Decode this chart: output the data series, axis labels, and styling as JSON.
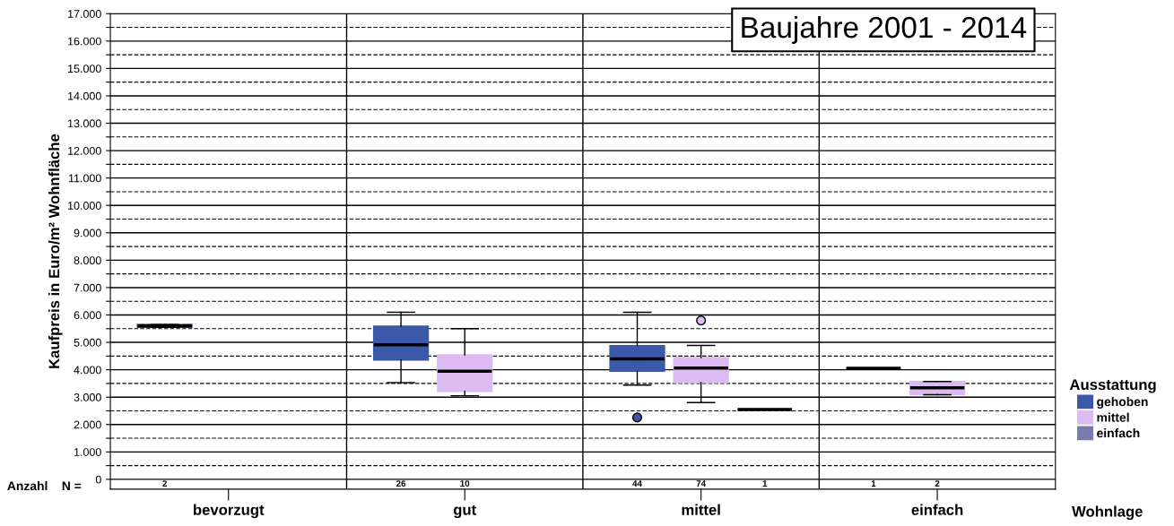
{
  "chart_data": {
    "type": "box",
    "title": "Baujahre 2001 - 2014",
    "xlabel": "Wohnlage",
    "ylabel": "Kaufpreis in Euro/m² Wohnfläche",
    "legend_title": "Ausstattung",
    "categories": [
      "bevorzugt",
      "gut",
      "mittel",
      "einfach"
    ],
    "series": [
      {
        "name": "gehoben",
        "color": "#3c58a8",
        "value_labels": [
          "2",
          "26",
          "44",
          "1"
        ],
        "boxes": [
          {
            "low": 5550,
            "q1": 5550,
            "median": 5600,
            "q3": 5650,
            "high": 5650
          },
          {
            "low": 3530,
            "q1": 4360,
            "median": 4910,
            "q3": 5590,
            "high": 6100
          },
          {
            "low": 3440,
            "q1": 3950,
            "median": 4400,
            "q3": 4880,
            "high": 6100,
            "outliers": [
              2260
            ]
          },
          {
            "low": 4050,
            "q1": 4050,
            "median": 4050,
            "q3": 4050,
            "high": 4050
          }
        ]
      },
      {
        "name": "mittel",
        "color": "#dcbcf0",
        "value_labels": [
          null,
          "10",
          "74",
          "2"
        ],
        "boxes": [
          null,
          {
            "low": 3050,
            "q1": 3210,
            "median": 3950,
            "q3": 4540,
            "high": 5500
          },
          {
            "low": 2800,
            "q1": 3530,
            "median": 4060,
            "q3": 4440,
            "high": 4890,
            "outliers": [
              5800
            ]
          },
          {
            "low": 3090,
            "q1": 3090,
            "median": 3340,
            "q3": 3570,
            "high": 3570
          }
        ]
      },
      {
        "name": "einfach",
        "color": "#7b7bab",
        "value_labels": [
          null,
          null,
          "1",
          null
        ],
        "boxes": [
          null,
          null,
          {
            "low": 2550,
            "q1": 2550,
            "median": 2550,
            "q3": 2550,
            "high": 2550
          },
          null
        ]
      }
    ],
    "ylim": [
      -360,
      17000
    ],
    "yticks": [
      0,
      {
        "value": 500,
        "label": null
      },
      {
        "value": 1000,
        "label": "1.000"
      },
      {
        "value": 1500,
        "label": null
      },
      {
        "value": 2000,
        "label": "2.000"
      },
      {
        "value": 2500,
        "label": null
      },
      {
        "value": 3000,
        "label": "3.000"
      },
      {
        "value": 3500,
        "label": null
      },
      {
        "value": 4000,
        "label": "4.000"
      },
      {
        "value": 4500,
        "label": null
      },
      {
        "value": 5000,
        "label": "5.000"
      },
      {
        "value": 5500,
        "label": null
      },
      {
        "value": 6000,
        "label": "6.000"
      },
      {
        "value": 6500,
        "label": null
      },
      {
        "value": 7000,
        "label": "7.000"
      },
      {
        "value": 7500,
        "label": null
      },
      {
        "value": 8000,
        "label": "8.000"
      },
      {
        "value": 8500,
        "label": null
      },
      {
        "value": 9000,
        "label": "9.000"
      },
      {
        "value": 9500,
        "label": null
      },
      {
        "value": 10000,
        "label": "10.000"
      },
      {
        "value": 10500,
        "label": null
      },
      {
        "value": 11000,
        "label": "11.000"
      },
      {
        "value": 11500,
        "label": null
      },
      {
        "value": 12000,
        "label": "12.000"
      },
      {
        "value": 12500,
        "label": null
      },
      {
        "value": 13000,
        "label": "13.000"
      },
      {
        "value": 13500,
        "label": null
      },
      {
        "value": 14000,
        "label": "14.000"
      },
      {
        "value": 14500,
        "label": null
      },
      {
        "value": 15000,
        "label": "15.000"
      },
      {
        "value": 15500,
        "label": null
      },
      {
        "value": 16000,
        "label": "16.000"
      },
      {
        "value": 16500,
        "label": null
      },
      {
        "value": 17000,
        "label": "17.000"
      }
    ],
    "grid": "y",
    "legend": "right",
    "annotations": [
      "Anzahl    N ="
    ]
  }
}
